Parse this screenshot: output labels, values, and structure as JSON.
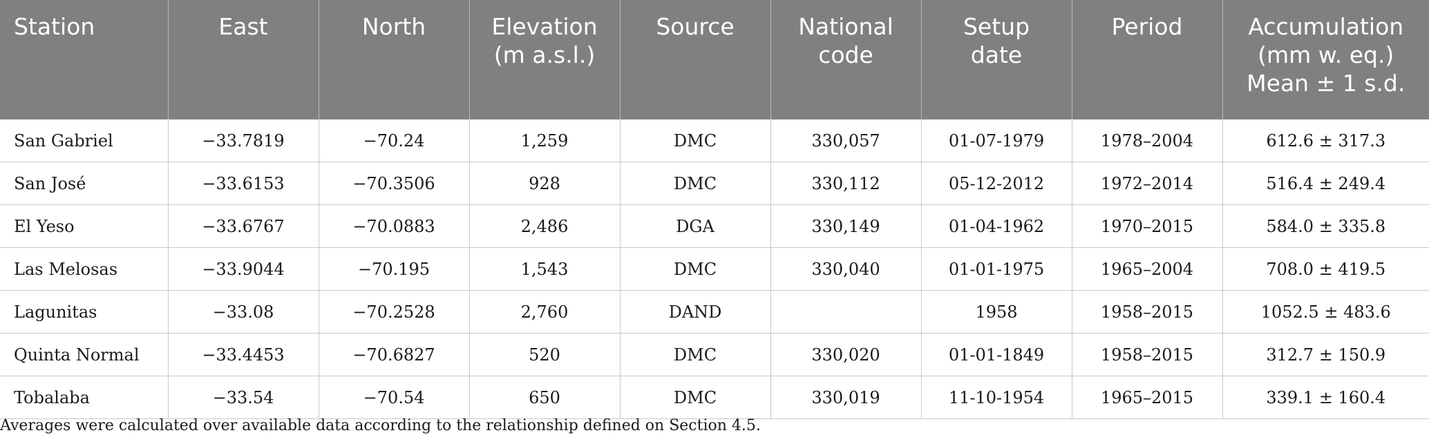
{
  "table": {
    "headers": [
      "Station",
      "East",
      "North",
      "Elevation\n(m a.s.l.)",
      "Source",
      "National\ncode",
      "Setup\ndate",
      "Period",
      "Accumulation\n(mm w. eq.)\nMean ± 1 s.d."
    ],
    "rows": [
      [
        "San Gabriel",
        "−33.7819",
        "−70.24",
        "1,259",
        "DMC",
        "330,057",
        "01-07-1979",
        "1978–2004",
        "612.6 ± 317.3"
      ],
      [
        "San José",
        "−33.6153",
        "−70.3506",
        "928",
        "DMC",
        "330,112",
        "05-12-2012",
        "1972–2014",
        "516.4 ± 249.4"
      ],
      [
        "El Yeso",
        "−33.6767",
        "−70.0883",
        "2,486",
        "DGA",
        "330,149",
        "01-04-1962",
        "1970–2015",
        "584.0 ± 335.8"
      ],
      [
        "Las Melosas",
        "−33.9044",
        "−70.195",
        "1,543",
        "DMC",
        "330,040",
        "01-01-1975",
        "1965–2004",
        "708.0 ± 419.5"
      ],
      [
        "Lagunitas",
        "−33.08",
        "−70.2528",
        "2,760",
        "DAND",
        "",
        "1958",
        "1958–2015",
        "1052.5 ± 483.6"
      ],
      [
        "Quinta Normal",
        "−33.4453",
        "−70.6827",
        "520",
        "DMC",
        "330,020",
        "01-01-1849",
        "1958–2015",
        "312.7 ± 150.9"
      ],
      [
        "Tobalaba",
        "−33.54",
        "−70.54",
        "650",
        "DMC",
        "330,019",
        "11-10-1954",
        "1965–2015",
        "339.1 ± 160.4"
      ]
    ]
  },
  "footnote": "Averages were calculated over available data according to the relationship defined on Section 4.5."
}
